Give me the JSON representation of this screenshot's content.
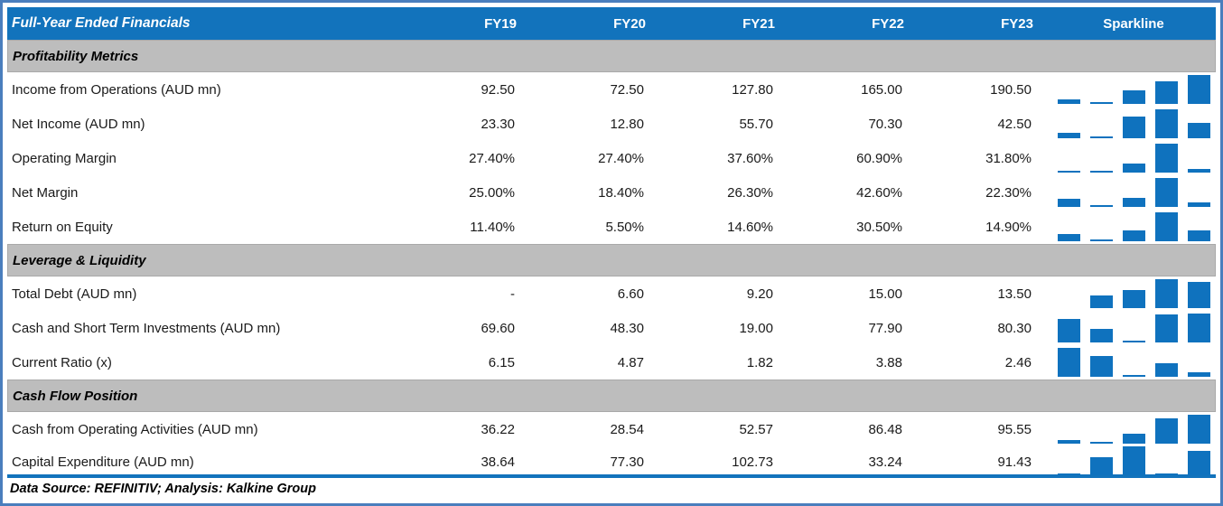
{
  "colors": {
    "header_bg": "#1273BC",
    "band_bg": "#BDBDBD",
    "band_border": "#A9A9A9",
    "sparkline_bar": "#0F72BE",
    "outer_frame": "#4A7EBD"
  },
  "table": {
    "title": "Full-Year Ended Financials",
    "columns": [
      "FY19",
      "FY20",
      "FY21",
      "FY22",
      "FY23"
    ],
    "sparkline_header": "Sparkline",
    "sections": [
      {
        "heading": "Profitability Metrics",
        "rows": [
          {
            "label": "Income from Operations (AUD mn)",
            "display": [
              "92.50",
              "72.50",
              "127.80",
              "165.00",
              "190.50"
            ],
            "values": [
              92.5,
              72.5,
              127.8,
              165.0,
              190.5
            ]
          },
          {
            "label": "Net Income (AUD mn)",
            "display": [
              "23.30",
              "12.80",
              "55.70",
              "70.30",
              "42.50"
            ],
            "values": [
              23.3,
              12.8,
              55.7,
              70.3,
              42.5
            ]
          },
          {
            "label": "Operating Margin",
            "display": [
              "27.40%",
              "27.40%",
              "37.60%",
              "60.90%",
              "31.80%"
            ],
            "values": [
              27.4,
              27.4,
              37.6,
              60.9,
              31.8
            ]
          },
          {
            "label": "Net Margin",
            "display": [
              "25.00%",
              "18.40%",
              "26.30%",
              "42.60%",
              "22.30%"
            ],
            "values": [
              25.0,
              18.4,
              26.3,
              42.6,
              22.3
            ]
          },
          {
            "label": "Return on Equity",
            "display": [
              "11.40%",
              "5.50%",
              "14.60%",
              "30.50%",
              "14.90%"
            ],
            "values": [
              11.4,
              5.5,
              14.6,
              30.5,
              14.9
            ]
          }
        ]
      },
      {
        "heading": "Leverage & Liquidity",
        "rows": [
          {
            "label": "Total Debt (AUD mn)",
            "display": [
              "-",
              "6.60",
              "9.20",
              "15.00",
              "13.50"
            ],
            "values": [
              null,
              6.6,
              9.2,
              15.0,
              13.5
            ]
          },
          {
            "label": "Cash and Short Term Investments (AUD mn)",
            "display": [
              "69.60",
              "48.30",
              "19.00",
              "77.90",
              "80.30"
            ],
            "values": [
              69.6,
              48.3,
              19.0,
              77.9,
              80.3
            ]
          },
          {
            "label": "Current Ratio (x)",
            "display": [
              "6.15",
              "4.87",
              "1.82",
              "3.88",
              "2.46"
            ],
            "values": [
              6.15,
              4.87,
              1.82,
              3.88,
              2.46
            ]
          }
        ]
      },
      {
        "heading": "Cash Flow Position",
        "rows": [
          {
            "label": "Cash from Operating Activities (AUD mn)",
            "display": [
              "36.22",
              "28.54",
              "52.57",
              "86.48",
              "95.55"
            ],
            "values": [
              36.22,
              28.54,
              52.57,
              86.48,
              95.55
            ]
          },
          {
            "label": "Capital Expenditure (AUD mn)",
            "display": [
              "38.64",
              "77.30",
              "102.73",
              "33.24",
              "91.43"
            ],
            "values": [
              38.64,
              77.3,
              102.73,
              33.24,
              91.43
            ]
          }
        ]
      }
    ],
    "footer": "Data Source: REFINITIV; Analysis: Kalkine Group"
  },
  "chart_data": {
    "type": "table",
    "title": "Full-Year Ended Financials",
    "categories": [
      "FY19",
      "FY20",
      "FY21",
      "FY22",
      "FY23"
    ],
    "series": [
      {
        "name": "Income from Operations (AUD mn)",
        "section": "Profitability Metrics",
        "values": [
          92.5,
          72.5,
          127.8,
          165.0,
          190.5
        ]
      },
      {
        "name": "Net Income (AUD mn)",
        "section": "Profitability Metrics",
        "values": [
          23.3,
          12.8,
          55.7,
          70.3,
          42.5
        ]
      },
      {
        "name": "Operating Margin (%)",
        "section": "Profitability Metrics",
        "values": [
          27.4,
          27.4,
          37.6,
          60.9,
          31.8
        ]
      },
      {
        "name": "Net Margin (%)",
        "section": "Profitability Metrics",
        "values": [
          25.0,
          18.4,
          26.3,
          42.6,
          22.3
        ]
      },
      {
        "name": "Return on Equity (%)",
        "section": "Profitability Metrics",
        "values": [
          11.4,
          5.5,
          14.6,
          30.5,
          14.9
        ]
      },
      {
        "name": "Total Debt (AUD mn)",
        "section": "Leverage & Liquidity",
        "values": [
          null,
          6.6,
          9.2,
          15.0,
          13.5
        ]
      },
      {
        "name": "Cash and Short Term Investments (AUD mn)",
        "section": "Leverage & Liquidity",
        "values": [
          69.6,
          48.3,
          19.0,
          77.9,
          80.3
        ]
      },
      {
        "name": "Current Ratio (x)",
        "section": "Leverage & Liquidity",
        "values": [
          6.15,
          4.87,
          1.82,
          3.88,
          2.46
        ]
      },
      {
        "name": "Cash from Operating Activities (AUD mn)",
        "section": "Cash Flow Position",
        "values": [
          36.22,
          28.54,
          52.57,
          86.48,
          95.55
        ]
      },
      {
        "name": "Capital Expenditure (AUD mn)",
        "section": "Cash Flow Position",
        "values": [
          38.64,
          77.3,
          102.73,
          33.24,
          91.43
        ]
      }
    ],
    "sparklines": "each row has an Excel-style column sparkline; bar height scales (value - rowMin)/(rowMax - rowMin), empty cell for null",
    "legend_position": "none",
    "grid": false
  }
}
